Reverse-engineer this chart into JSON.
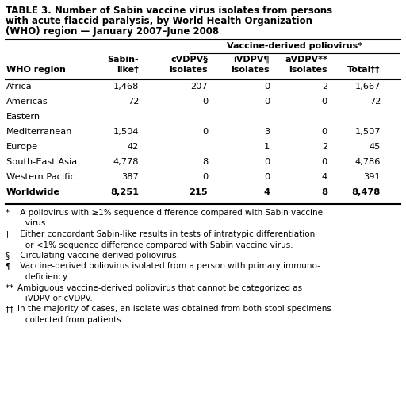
{
  "title_line1": "TABLE 3. Number of Sabin vaccine virus isolates from persons",
  "title_line2": "with acute flaccid paralysis, by World Health Organization",
  "title_line3": "(WHO) region — January 2007–June 2008",
  "group_header": "Vaccine-derived poliovirus*",
  "col_headers_line1": [
    "",
    "Sabin-",
    "cVDPV§",
    "iVDPV¶",
    "aVDPV**",
    ""
  ],
  "col_headers_line2": [
    "WHO region",
    "like†",
    "isolates",
    "isolates",
    "isolates",
    "Total††"
  ],
  "rows": [
    [
      "Africa",
      "1,468",
      "207",
      "0",
      "2",
      "1,667",
      false
    ],
    [
      "Americas",
      "72",
      "0",
      "0",
      "0",
      "72",
      false
    ],
    [
      "Eastern",
      "",
      "",
      "",
      "",
      "",
      false
    ],
    [
      "Mediterranean",
      "1,504",
      "0",
      "3",
      "0",
      "1,507",
      false
    ],
    [
      "Europe",
      "42",
      "",
      "1",
      "2",
      "45",
      false
    ],
    [
      "South-East Asia",
      "4,778",
      "8",
      "0",
      "0",
      "4,786",
      false
    ],
    [
      "Western Pacific",
      "387",
      "0",
      "0",
      "4",
      "391",
      false
    ],
    [
      "Worldwide",
      "8,251",
      "215",
      "4",
      "8",
      "8,478",
      true
    ]
  ],
  "footnotes": [
    [
      "* ",
      " A poliovirus with ≥1% sequence difference compared with Sabin vaccine"
    ],
    [
      "",
      "   virus."
    ],
    [
      "† ",
      " Either concordant Sabin-like results in tests of intratypic differentiation"
    ],
    [
      "",
      "   or <1% sequence difference compared with Sabin vaccine virus."
    ],
    [
      "§ ",
      " Circulating vaccine-derived poliovirus."
    ],
    [
      "¶ ",
      " Vaccine-derived poliovirus isolated from a person with primary immuno-"
    ],
    [
      "",
      "   deficiency."
    ],
    [
      "** ",
      "Ambiguous vaccine-derived poliovirus that cannot be categorized as"
    ],
    [
      "",
      "   iVDPV or cVDPV."
    ],
    [
      "†† ",
      "In the majority of cases, an isolate was obtained from both stool specimens"
    ],
    [
      "",
      "   collected from patients."
    ]
  ],
  "col_x_pix": [
    8,
    175,
    262,
    340,
    413,
    480
  ],
  "col_align": [
    "left",
    "right",
    "right",
    "right",
    "right",
    "right"
  ],
  "bg_color": "#ffffff"
}
